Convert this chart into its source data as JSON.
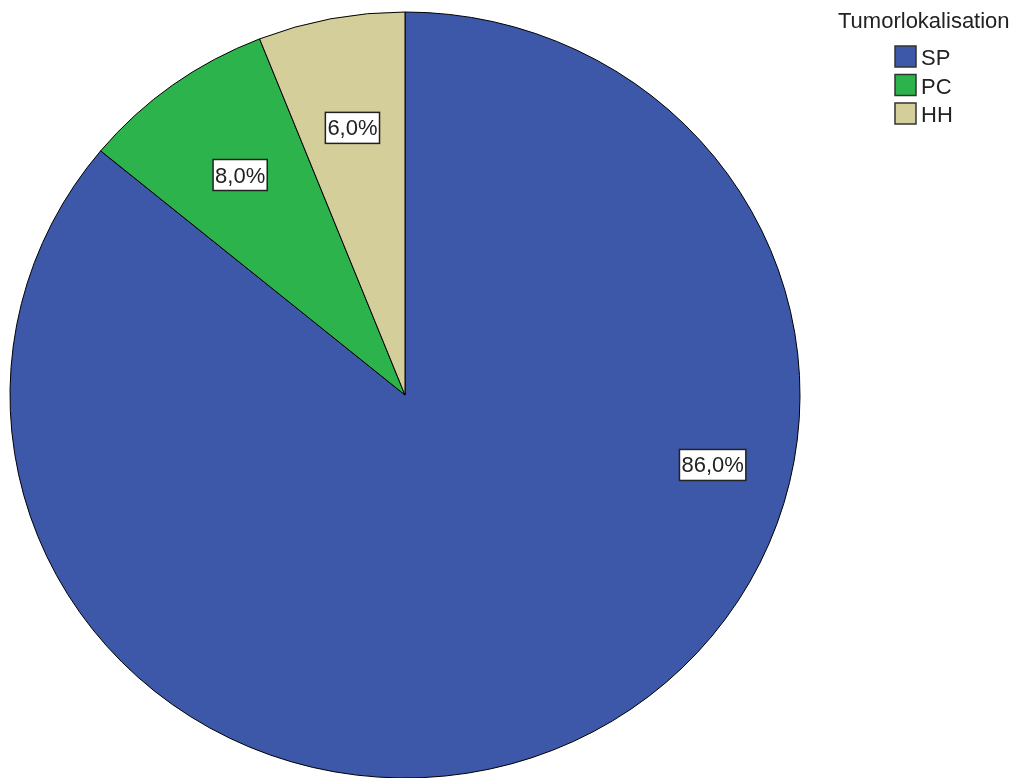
{
  "chart_data": {
    "type": "pie",
    "categories": [
      "SP",
      "PC",
      "HH"
    ],
    "values": [
      86,
      8,
      6
    ],
    "colors": [
      "#3d58a9",
      "#2cb34b",
      "#d3ce9a"
    ],
    "value_labels": [
      "86,0%",
      "8,0%",
      "6,0%"
    ],
    "legend_title": "Tumorlokalisation",
    "legend": "top right"
  }
}
